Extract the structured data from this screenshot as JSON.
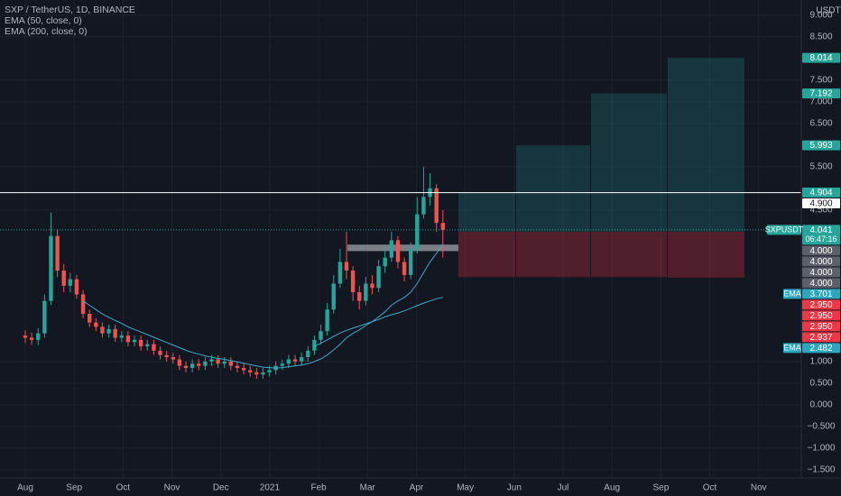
{
  "chart_data": {
    "type": "candlestick",
    "title": "SXP / TetherUS, 1D, BINANCE",
    "currency": "USDT",
    "up_color": "#26a69a",
    "down_color": "#ef5350",
    "background": "#131722",
    "grid": true,
    "ylim": [
      -1.69,
      9.35
    ],
    "yticks": [
      {
        "value": 9,
        "label": "9.000"
      },
      {
        "value": 8.5,
        "label": "8.500"
      },
      {
        "value": 7.5,
        "label": "7.500"
      },
      {
        "value": 7,
        "label": "7.000"
      },
      {
        "value": 6.5,
        "label": "6.500"
      },
      {
        "value": 5.5,
        "label": "5.500"
      },
      {
        "value": 4.5,
        "label": "4.500"
      },
      {
        "value": 1,
        "label": "1.000"
      },
      {
        "value": 0.5,
        "label": "0.500"
      },
      {
        "value": 0,
        "label": "0.000"
      },
      {
        "value": -0.5,
        "label": "−0.500"
      },
      {
        "value": -1,
        "label": "−1.000"
      },
      {
        "value": -1.5,
        "label": "−1.500"
      }
    ],
    "xticks": [
      "Aug",
      "Sep",
      "Oct",
      "Nov",
      "Dec",
      "2021",
      "Feb",
      "Mar",
      "Apr",
      "May",
      "Jun",
      "Jul",
      "Aug",
      "Sep",
      "Oct",
      "Nov"
    ],
    "open": [
      1.6,
      1.55,
      1.5,
      1.65,
      2.4,
      3.9,
      3.1,
      2.75,
      2.9,
      2.55,
      2.1,
      1.9,
      1.8,
      1.65,
      1.75,
      1.55,
      1.6,
      1.45,
      1.5,
      1.35,
      1.4,
      1.25,
      1.15,
      1.1,
      1.05,
      0.9,
      0.85,
      0.95,
      0.9,
      1.0,
      1.05,
      0.95,
      1.0,
      0.9,
      0.85,
      0.8,
      0.75,
      0.7,
      0.75,
      0.8,
      0.9,
      0.95,
      1.05,
      1.0,
      1.1,
      1.25,
      1.5,
      1.7,
      2.2,
      2.8,
      3.3,
      3.1,
      2.6,
      2.4,
      2.8,
      2.7,
      3.2,
      3.4,
      3.8,
      3.3,
      3.0,
      3.6,
      4.4,
      4.8,
      5.0,
      4.2
    ],
    "high": [
      1.72,
      1.67,
      1.77,
      2.55,
      4.44,
      4.05,
      3.25,
      3.05,
      3.0,
      2.65,
      2.2,
      2.0,
      1.9,
      1.85,
      1.85,
      1.7,
      1.7,
      1.6,
      1.6,
      1.5,
      1.5,
      1.35,
      1.25,
      1.2,
      1.15,
      1.0,
      1.05,
      1.05,
      1.1,
      1.15,
      1.15,
      1.1,
      1.1,
      1.0,
      0.95,
      0.9,
      0.85,
      0.85,
      0.9,
      1.0,
      1.05,
      1.15,
      1.15,
      1.2,
      1.35,
      1.6,
      1.85,
      2.35,
      3.0,
      3.6,
      4.0,
      3.2,
      2.75,
      2.95,
      3.0,
      3.35,
      3.6,
      4.0,
      3.9,
      3.4,
      3.75,
      4.8,
      5.5,
      5.35,
      5.1,
      4.5
    ],
    "low": [
      1.43,
      1.38,
      1.38,
      1.55,
      2.3,
      2.95,
      2.6,
      2.6,
      2.45,
      2.0,
      1.8,
      1.7,
      1.55,
      1.55,
      1.45,
      1.45,
      1.35,
      1.35,
      1.25,
      1.25,
      1.15,
      1.05,
      1.0,
      0.95,
      0.8,
      0.75,
      0.75,
      0.8,
      0.8,
      0.9,
      0.85,
      0.85,
      0.8,
      0.75,
      0.7,
      0.65,
      0.6,
      0.6,
      0.65,
      0.7,
      0.8,
      0.85,
      0.9,
      0.9,
      1.0,
      1.15,
      1.4,
      1.6,
      2.1,
      2.7,
      2.9,
      2.4,
      2.2,
      2.3,
      2.55,
      2.6,
      3.05,
      3.3,
      3.15,
      2.85,
      2.9,
      3.5,
      4.3,
      4.6,
      4.0,
      3.4
    ],
    "close": [
      1.55,
      1.5,
      1.65,
      2.4,
      3.9,
      3.1,
      2.75,
      2.9,
      2.55,
      2.1,
      1.9,
      1.8,
      1.65,
      1.75,
      1.55,
      1.6,
      1.45,
      1.5,
      1.35,
      1.4,
      1.25,
      1.15,
      1.1,
      1.05,
      0.9,
      0.85,
      0.95,
      0.9,
      1.0,
      1.05,
      0.95,
      1.0,
      0.9,
      0.85,
      0.8,
      0.75,
      0.7,
      0.75,
      0.8,
      0.9,
      0.95,
      1.05,
      1.0,
      1.1,
      1.25,
      1.5,
      1.7,
      2.2,
      2.8,
      3.3,
      3.1,
      2.6,
      2.4,
      2.8,
      2.7,
      3.2,
      3.4,
      3.8,
      3.3,
      3.0,
      3.6,
      4.4,
      4.8,
      5.0,
      4.2,
      4.041
    ],
    "series": [
      {
        "name": "EMA (50, close, 0)",
        "tag": "EMA",
        "color": "#3fa9c9",
        "values": [
          null,
          null,
          null,
          null,
          null,
          null,
          null,
          null,
          null,
          2.4,
          2.3,
          2.2,
          2.1,
          2.02,
          1.95,
          1.88,
          1.8,
          1.74,
          1.68,
          1.62,
          1.56,
          1.5,
          1.44,
          1.38,
          1.32,
          1.26,
          1.21,
          1.17,
          1.13,
          1.1,
          1.07,
          1.05,
          1.02,
          0.99,
          0.96,
          0.93,
          0.9,
          0.87,
          0.86,
          0.85,
          0.86,
          0.88,
          0.9,
          0.92,
          0.95,
          1.0,
          1.06,
          1.15,
          1.27,
          1.4,
          1.55,
          1.65,
          1.73,
          1.83,
          1.92,
          2.03,
          2.15,
          2.3,
          2.4,
          2.48,
          2.6,
          2.8,
          3.05,
          3.3,
          3.5,
          3.701
        ]
      },
      {
        "name": "EMA (200, close, 0)",
        "tag": "EMA",
        "color": "#3fa9c9",
        "values": [
          null,
          null,
          null,
          null,
          null,
          null,
          null,
          null,
          null,
          null,
          null,
          null,
          null,
          null,
          null,
          null,
          null,
          null,
          null,
          null,
          null,
          null,
          null,
          null,
          null,
          null,
          null,
          null,
          null,
          null,
          null,
          null,
          null,
          null,
          null,
          null,
          null,
          null,
          null,
          null,
          null,
          null,
          null,
          null,
          null,
          1.35,
          1.42,
          1.5,
          1.58,
          1.66,
          1.72,
          1.77,
          1.82,
          1.87,
          1.92,
          1.97,
          2.03,
          2.08,
          2.12,
          2.17,
          2.23,
          2.29,
          2.35,
          2.4,
          2.45,
          2.482
        ]
      }
    ],
    "last_price": {
      "symbol": "SXPUSDT",
      "value": 4.041,
      "countdown": "06:47:16"
    },
    "horizontal_line": {
      "value": 4.9,
      "label": "4.900"
    },
    "zone": [
      3.55,
      3.7
    ],
    "positions": {
      "entries": [
        4,
        4,
        4,
        4
      ],
      "entry_labels": [
        "4.000",
        "4.000",
        "4.000",
        "4.000"
      ],
      "targets": [
        4.904,
        5.993,
        7.192,
        8.014
      ],
      "stops": [
        2.95,
        2.95,
        2.95,
        2.937
      ],
      "stop_labels": [
        "2.950",
        "2.950",
        "2.950",
        "2.937"
      ]
    }
  }
}
